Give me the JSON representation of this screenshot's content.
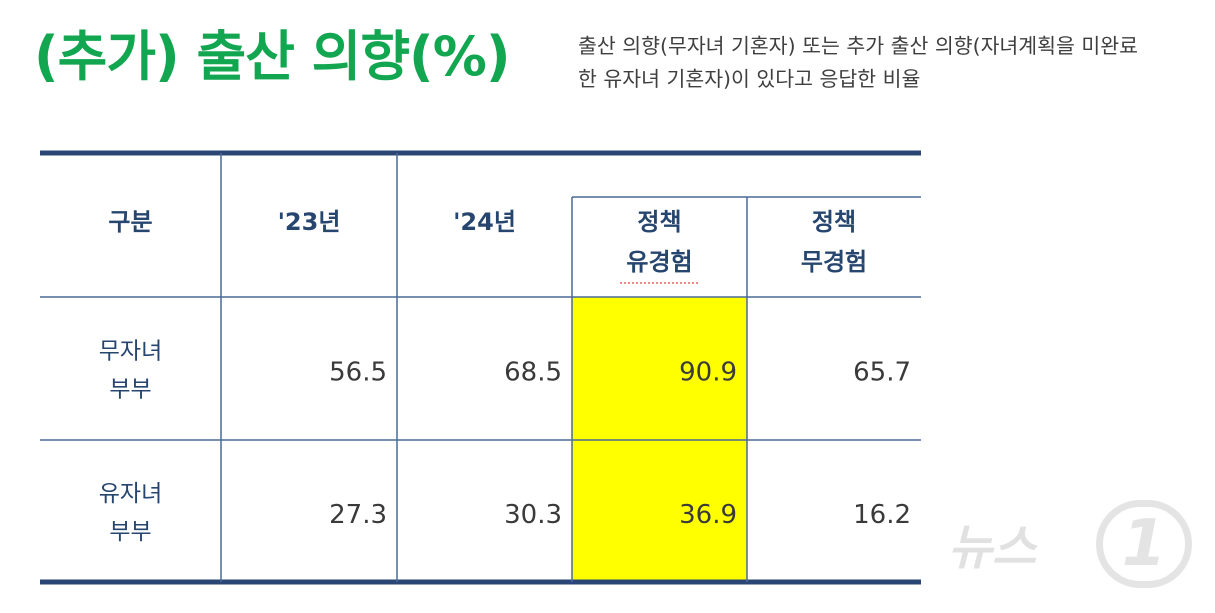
{
  "title": "(추가) 출산 의향(%)",
  "subtitle_lines": [
    "출산 의향(무자녀 기혼자) 또는 추가 출산 의향(자녀계획을 미완료",
    "한 유자녀 기혼자)이 있다고 응답한 비율"
  ],
  "colors": {
    "title": "#12a650",
    "header_text": "#27466f",
    "rules": "#2a4675",
    "inner_rules": "#4a6a96",
    "highlight": "#ffff00"
  },
  "chart_data": {
    "type": "table",
    "columns": [
      "구분",
      "'23년",
      "'24년",
      "정책\n유경험",
      "정책\n무경험"
    ],
    "column_group": "'24년",
    "highlight_column": 3,
    "rows": [
      {
        "label": "무자녀\n부부",
        "values": [
          56.5,
          68.5,
          90.9,
          65.7
        ]
      },
      {
        "label": "유자녀\n부부",
        "values": [
          27.3,
          30.3,
          36.9,
          16.2
        ]
      }
    ]
  },
  "watermark": {
    "text": "뉴스",
    "badge": "1"
  }
}
